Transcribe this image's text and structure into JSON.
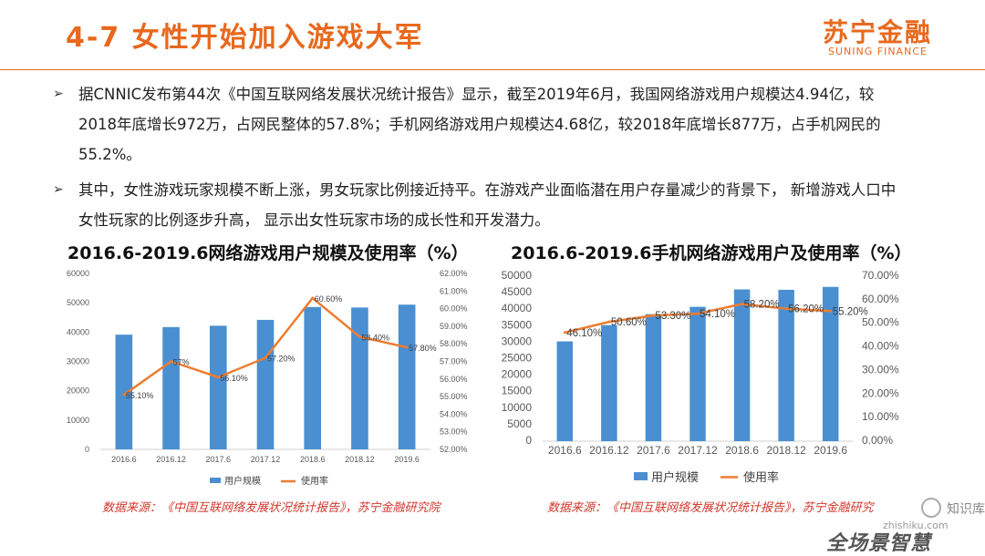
{
  "header": {
    "title": "4-7 女性开始加入游戏大军",
    "logo_cn": "苏宁金融",
    "logo_en": "SUNING FINANCE"
  },
  "paragraphs": [
    {
      "bullet": "➢",
      "text": "据CNNIC发布第44次《中国互联网络发展状况统计报告》显示，截至2019年6月，我国网络游戏用户规模达4.94亿，较2018年底增长972万，占网民整体的57.8%；手机网络游戏用户规模达4.68亿，较2018年底增长877万，占手机网民的55.2%。"
    },
    {
      "bullet": "➢",
      "text": "其中，女性游戏玩家规模不断上涨，男女玩家比例接近持平。在游戏产业面临潜在用户存量减少的背景下， 新增游戏人口中女性玩家的比例逐步升高， 显示出女性玩家市场的成长性和开发潜力。"
    }
  ],
  "sources": [
    "数据来源：《中国互联网络发展状况统计报告》，苏宁金融研究院",
    "数据来源：《中国互联网络发展状况统计报告》，苏宁金融研究"
  ],
  "watermark": {
    "text1": "知识库",
    "text2": "zhishiku.com",
    "text3": "全场景智慧"
  },
  "colors": {
    "accent": "#e8681d",
    "bar": "#4a8fd1",
    "line": "#ed7d31",
    "source": "#d2372b"
  },
  "chart_data": [
    {
      "type": "bar",
      "title": "2016.6-2019.6网络游戏用户规模及使用率（%）",
      "categories": [
        "2016.6",
        "2016.12",
        "2017.6",
        "2017.12",
        "2018.6",
        "2018.12",
        "2019.6"
      ],
      "series": [
        {
          "name": "用户规模",
          "type": "bar",
          "axis": "left",
          "values": [
            39108,
            41704,
            42164,
            44161,
            48552,
            48384,
            49356
          ]
        },
        {
          "name": "使用率",
          "type": "line",
          "axis": "right",
          "values": [
            55.1,
            57.0,
            56.1,
            57.2,
            60.6,
            58.4,
            57.8
          ],
          "labels": [
            "55.10%",
            "57%",
            "56.10%",
            "57.20%",
            "60.60%",
            "58.40%",
            "57.80%"
          ]
        }
      ],
      "ylim_left": [
        0,
        60000
      ],
      "yticks_left": [
        "0",
        "10000",
        "20000",
        "30000",
        "40000",
        "50000",
        "60000"
      ],
      "ylim_right": [
        52,
        62
      ],
      "yticks_right": [
        "52.00%",
        "53.00%",
        "54.00%",
        "55.00%",
        "56.00%",
        "57.00%",
        "58.00%",
        "59.00%",
        "60.00%",
        "61.00%",
        "62.00%"
      ],
      "legend": "bottom"
    },
    {
      "type": "bar",
      "title": "2016.6-2019.6手机网络游戏用户及使用率（%）",
      "categories": [
        "2016.6",
        "2016.12",
        "2017.6",
        "2017.12",
        "2018.6",
        "2018.12",
        "2019.6"
      ],
      "series": [
        {
          "name": "用户规模",
          "type": "bar",
          "axis": "left",
          "values": [
            30239,
            35166,
            38483,
            40710,
            45990,
            45879,
            46756
          ]
        },
        {
          "name": "使用率",
          "type": "line",
          "axis": "right",
          "values": [
            46.1,
            50.6,
            53.3,
            54.1,
            58.2,
            56.2,
            55.2
          ],
          "labels": [
            "46.10%",
            "50.60%",
            "53.30%",
            "54.10%",
            "58.20%",
            "56.20%",
            "55.20%"
          ]
        }
      ],
      "ylim_left": [
        0,
        50000
      ],
      "yticks_left": [
        "0",
        "5000",
        "10000",
        "15000",
        "20000",
        "25000",
        "30000",
        "35000",
        "40000",
        "45000",
        "50000"
      ],
      "ylim_right": [
        0,
        70
      ],
      "yticks_right": [
        "0.00%",
        "10.00%",
        "20.00%",
        "30.00%",
        "40.00%",
        "50.00%",
        "60.00%",
        "70.00%"
      ],
      "legend": "bottom"
    }
  ]
}
